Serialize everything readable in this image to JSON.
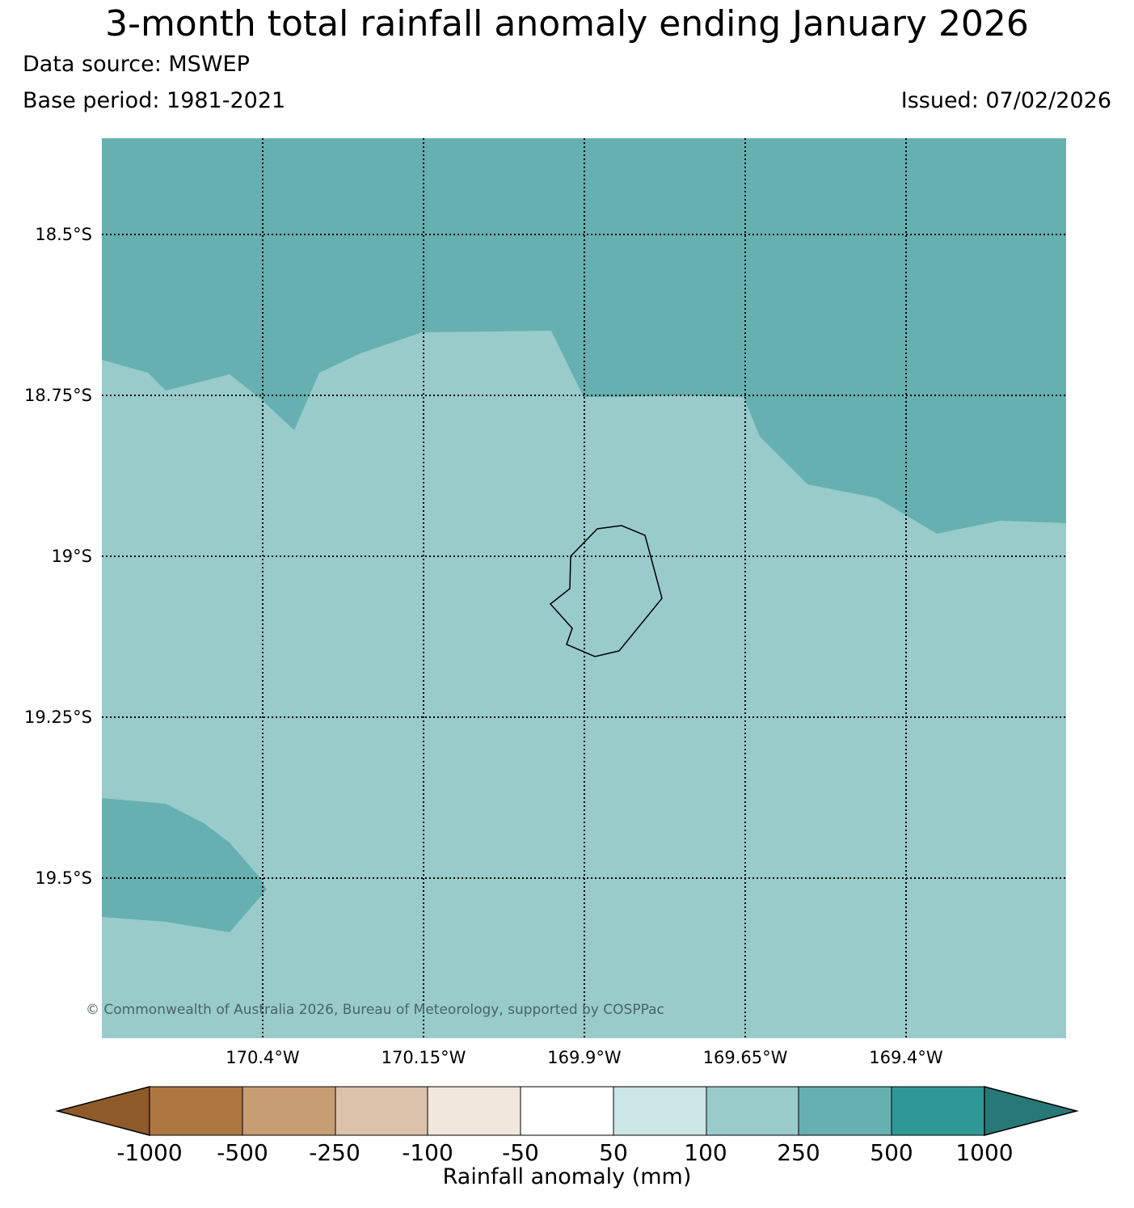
{
  "header": {
    "title": "3-month total rainfall anomaly ending January 2026",
    "source": "Data source: MSWEP",
    "base_period": "Base period: 1981-2021",
    "issued": "Issued: 07/02/2026"
  },
  "map": {
    "lat_labels": [
      "18.5°S",
      "18.75°S",
      "19°S",
      "19.25°S",
      "19.5°S"
    ],
    "lon_labels": [
      "170.4°W",
      "170.15°W",
      "169.9°W",
      "169.65°W",
      "169.4°W"
    ],
    "extent": {
      "lon_min": -170.65,
      "lon_max": -169.15,
      "lat_top": -18.35,
      "lat_bottom": -19.75
    },
    "copyright": "© Commonwealth of Australia 2026, Bureau of Meteorology, supported by COSPPac",
    "colors": {
      "band_100_250": "#99cbcb",
      "band_250_500": "#66b0b1",
      "coastline": "#000000"
    },
    "gridline_style": "dotted"
  },
  "colorbar": {
    "label": "Rainfall anomaly (mm)",
    "ticks": [
      "-1000",
      "-500",
      "-250",
      "-100",
      "-50",
      "50",
      "100",
      "250",
      "500",
      "1000"
    ],
    "colors": [
      "#8f5a29",
      "#ad7741",
      "#c79d74",
      "#dcc2aa",
      "#f2e7dd",
      "#ffffff",
      "#cce5e5",
      "#99cbcb",
      "#66b0b1",
      "#2f9896",
      "#267977"
    ]
  }
}
